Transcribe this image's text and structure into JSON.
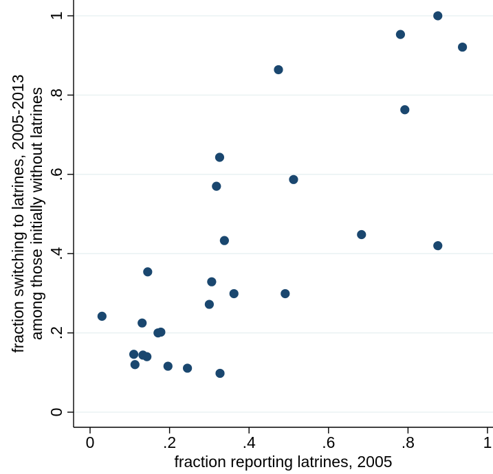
{
  "chart_data": {
    "type": "scatter",
    "xlabel": "fraction reporting latrines, 2005",
    "ylabel_lines": [
      "fraction switching to latrines, 2005-2013",
      "among those initially without latrines"
    ],
    "xlim": [
      0,
      1
    ],
    "ylim": [
      0,
      1
    ],
    "x_ticks": [
      {
        "value": 0,
        "label": "0"
      },
      {
        "value": 0.2,
        "label": ".2"
      },
      {
        "value": 0.4,
        "label": ".4"
      },
      {
        "value": 0.6,
        "label": ".6"
      },
      {
        "value": 0.8,
        "label": ".8"
      },
      {
        "value": 1,
        "label": "1"
      }
    ],
    "y_ticks": [
      {
        "value": 0,
        "label": "0"
      },
      {
        "value": 0.2,
        "label": ".2"
      },
      {
        "value": 0.4,
        "label": ".4"
      },
      {
        "value": 0.6,
        "label": ".6"
      },
      {
        "value": 0.8,
        "label": ".8"
      },
      {
        "value": 1,
        "label": "1"
      }
    ],
    "grid": "horizontal",
    "marker_color": "#1a476f",
    "points": [
      {
        "x": 0.03,
        "y": 0.242
      },
      {
        "x": 0.11,
        "y": 0.146
      },
      {
        "x": 0.113,
        "y": 0.12
      },
      {
        "x": 0.131,
        "y": 0.225
      },
      {
        "x": 0.133,
        "y": 0.144
      },
      {
        "x": 0.143,
        "y": 0.14
      },
      {
        "x": 0.145,
        "y": 0.354
      },
      {
        "x": 0.171,
        "y": 0.2
      },
      {
        "x": 0.178,
        "y": 0.202
      },
      {
        "x": 0.196,
        "y": 0.116
      },
      {
        "x": 0.245,
        "y": 0.111
      },
      {
        "x": 0.3,
        "y": 0.272
      },
      {
        "x": 0.306,
        "y": 0.329
      },
      {
        "x": 0.318,
        "y": 0.57
      },
      {
        "x": 0.326,
        "y": 0.643
      },
      {
        "x": 0.327,
        "y": 0.098
      },
      {
        "x": 0.338,
        "y": 0.433
      },
      {
        "x": 0.362,
        "y": 0.299
      },
      {
        "x": 0.474,
        "y": 0.864
      },
      {
        "x": 0.491,
        "y": 0.299
      },
      {
        "x": 0.512,
        "y": 0.587
      },
      {
        "x": 0.683,
        "y": 0.448
      },
      {
        "x": 0.781,
        "y": 0.953
      },
      {
        "x": 0.792,
        "y": 0.763
      },
      {
        "x": 0.875,
        "y": 1.0
      },
      {
        "x": 0.875,
        "y": 0.42
      },
      {
        "x": 0.937,
        "y": 0.921
      }
    ]
  }
}
